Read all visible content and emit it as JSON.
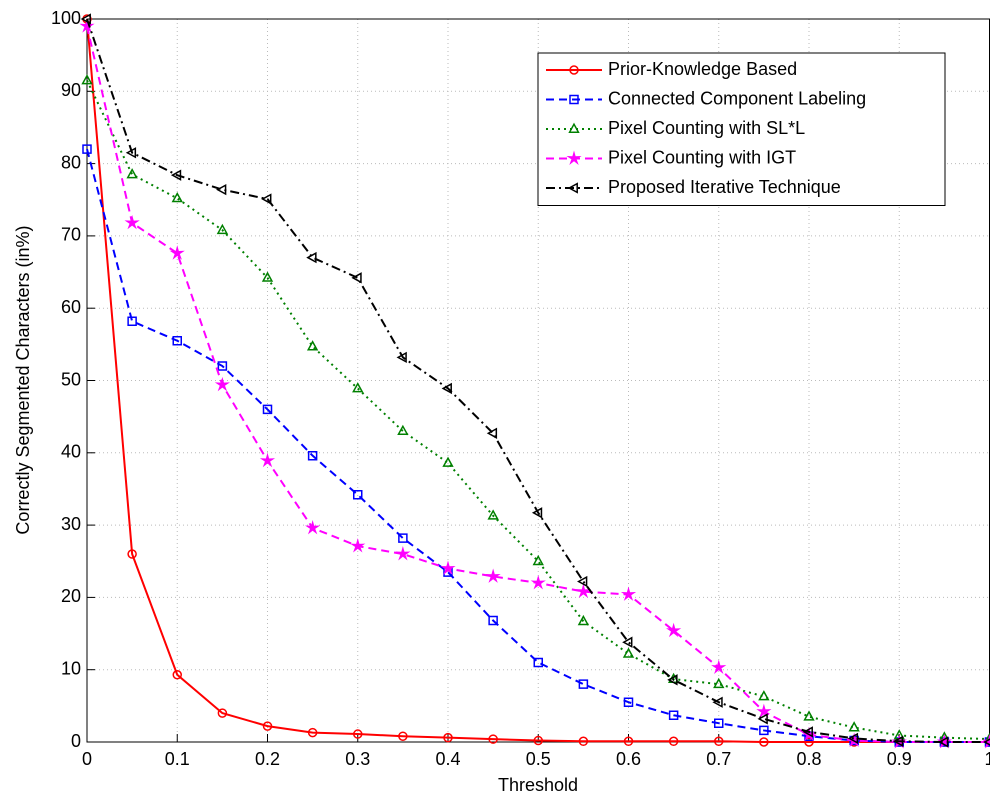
{
  "chart_data": {
    "type": "line",
    "xlabel": "Threshold",
    "ylabel": "Correctly Segmented Characters (in%)",
    "x": [
      0,
      0.05,
      0.1,
      0.15,
      0.2,
      0.25,
      0.3,
      0.35,
      0.4,
      0.45,
      0.5,
      0.55,
      0.6,
      0.65,
      0.7,
      0.75,
      0.8,
      0.85,
      0.9,
      0.95,
      1
    ],
    "xlim": [
      0,
      1
    ],
    "xticks": [
      0,
      0.1,
      0.2,
      0.3,
      0.4,
      0.5,
      0.6,
      0.7,
      0.8,
      0.9,
      1
    ],
    "ylim": [
      0,
      100
    ],
    "yticks": [
      0,
      10,
      20,
      30,
      40,
      50,
      60,
      70,
      80,
      90,
      100
    ],
    "grid": true,
    "legend": "upper right",
    "series": [
      {
        "name": "Prior-Knowledge Based",
        "color": "#ff0000",
        "linestyle": "solid",
        "marker": "circle",
        "values": [
          100,
          26,
          9.3,
          4,
          2.2,
          1.3,
          1.1,
          0.8,
          0.6,
          0.4,
          0.2,
          0.1,
          0.1,
          0.1,
          0.1,
          0,
          0,
          0,
          0,
          0,
          0
        ]
      },
      {
        "name": "Connected Component Labeling",
        "color": "#0000ff",
        "linestyle": "dashed",
        "marker": "square",
        "values": [
          82,
          58.2,
          55.5,
          52,
          46,
          39.6,
          34.2,
          28.2,
          23.5,
          16.8,
          11,
          8,
          5.5,
          3.7,
          2.6,
          1.6,
          0.8,
          0.2,
          0,
          0,
          0
        ]
      },
      {
        "name": "Pixel Counting with SL*L",
        "color": "#008000",
        "linestyle": "dotted",
        "marker": "triangle-up",
        "values": [
          91.5,
          78.5,
          75.2,
          70.8,
          64.2,
          54.7,
          48.9,
          43,
          38.6,
          31.3,
          25,
          16.7,
          12.2,
          8.7,
          8,
          6.3,
          3.5,
          2,
          0.9,
          0.6,
          0.4
        ]
      },
      {
        "name": "Pixel Counting with IGT",
        "color": "#ff00ff",
        "linestyle": "dashed",
        "marker": "star",
        "values": [
          99,
          71.8,
          67.6,
          49.4,
          38.9,
          29.6,
          27.1,
          26,
          24,
          22.9,
          22,
          20.8,
          20.4,
          15.4,
          10.3,
          4.2,
          1,
          0.2,
          0,
          0,
          0
        ]
      },
      {
        "name": "Proposed Iterative Technique",
        "color": "#000000",
        "linestyle": "dashdot",
        "marker": "triangle-left",
        "values": [
          100,
          81.5,
          78.4,
          76.4,
          75.1,
          67,
          64.2,
          53.2,
          48.9,
          42.7,
          31.7,
          22.2,
          13.8,
          8.6,
          5.5,
          3.2,
          1.4,
          0.5,
          0.1,
          0,
          0
        ]
      }
    ]
  }
}
